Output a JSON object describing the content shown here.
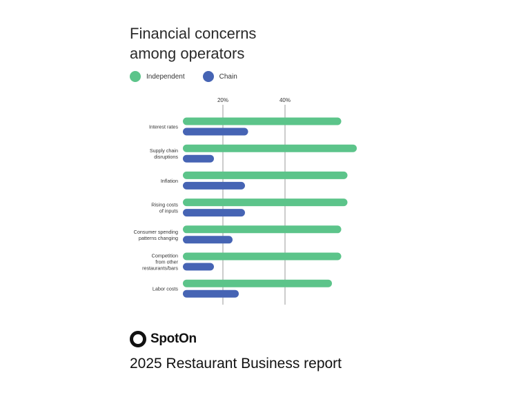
{
  "chart_data": {
    "type": "bar",
    "orientation": "horizontal",
    "title_lines": [
      "Financial concerns",
      "among operators"
    ],
    "x_ticks": [
      "20%",
      "40%"
    ],
    "x_tick_values": [
      20,
      40
    ],
    "xlim": [
      0,
      60
    ],
    "grid": "vertical lines at ticks",
    "legend_position": "top-left",
    "categories": [
      [
        "Interest rates"
      ],
      [
        "Supply chain",
        "disruptions"
      ],
      [
        "Inflation"
      ],
      [
        "Rising costs",
        "of inputs"
      ],
      [
        "Consumer spending",
        "patterns changing"
      ],
      [
        "Competition",
        "from other",
        "restaurants/bars"
      ],
      [
        "Labor costs"
      ]
    ],
    "series": [
      {
        "name": "Independent",
        "color": "#5cc48a",
        "values": [
          51,
          56,
          53,
          53,
          51,
          51,
          48
        ]
      },
      {
        "name": "Chain",
        "color": "#4664b4",
        "values": [
          21,
          10,
          20,
          20,
          16,
          10,
          18
        ]
      }
    ]
  },
  "brand": {
    "name": "SpotOn",
    "report_title": "2025 Restaurant Business report"
  }
}
